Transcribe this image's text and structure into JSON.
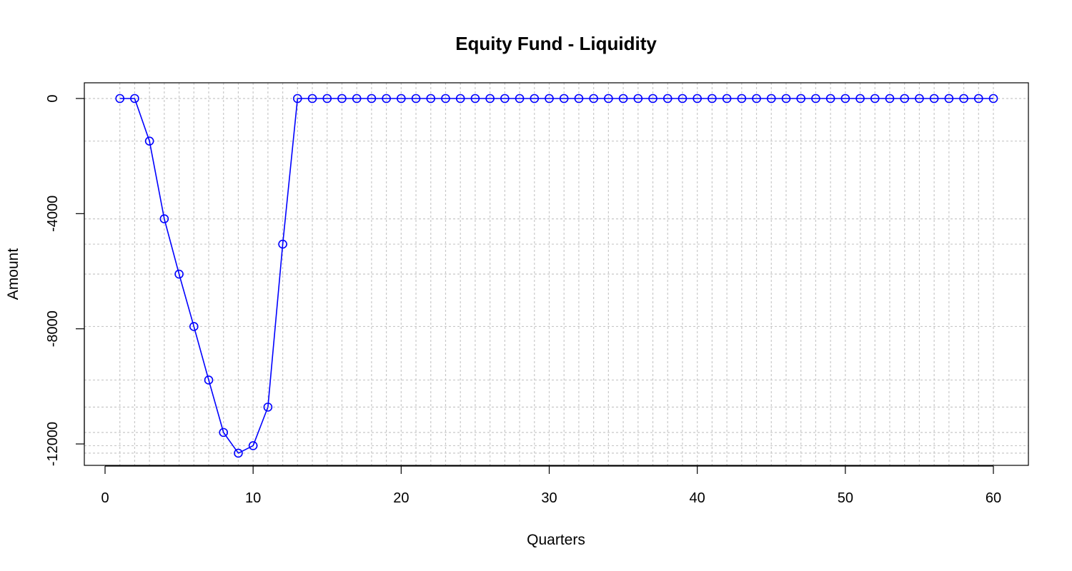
{
  "chart_data": {
    "type": "line",
    "title": "Equity Fund - Liquidity",
    "xlabel": "Quarters",
    "ylabel": "Amount",
    "xlim": [
      0,
      62
    ],
    "ylim": [
      -12800,
      300
    ],
    "xticks": [
      0,
      10,
      20,
      30,
      40,
      50,
      60
    ],
    "yticks": [
      0,
      -4000,
      -8000,
      -12000
    ],
    "xtick_labels": [
      "0",
      "10",
      "20",
      "30",
      "40",
      "50",
      "60"
    ],
    "ytick_labels": [
      "0",
      "-4000",
      "-8000",
      "-12000"
    ],
    "grid": true,
    "series_color": "#0000ff",
    "marker": "open-circle",
    "series": [
      {
        "x": [
          1,
          2,
          3,
          4,
          5,
          6,
          7,
          8,
          9,
          10,
          11,
          12,
          13,
          14,
          15,
          16,
          17,
          18,
          19,
          20,
          21,
          22,
          23,
          24,
          25,
          26,
          27,
          28,
          29,
          30,
          31,
          32,
          33,
          34,
          35,
          36,
          37,
          38,
          39,
          40,
          41,
          42,
          43,
          44,
          45,
          46,
          47,
          48,
          49,
          50,
          51,
          52,
          53,
          54,
          55,
          56,
          57,
          58,
          59,
          60
        ],
        "y": [
          0,
          0,
          -1480,
          -4180,
          -6100,
          -7920,
          -9780,
          -11600,
          -12320,
          -12060,
          -10720,
          -5060,
          0,
          0,
          0,
          0,
          0,
          0,
          0,
          0,
          0,
          0,
          0,
          0,
          0,
          0,
          0,
          0,
          0,
          0,
          0,
          0,
          0,
          0,
          0,
          0,
          0,
          0,
          0,
          0,
          0,
          0,
          0,
          0,
          0,
          0,
          0,
          0,
          0,
          0,
          0,
          0,
          0,
          0,
          0,
          0,
          0,
          0,
          0,
          0
        ]
      }
    ]
  }
}
